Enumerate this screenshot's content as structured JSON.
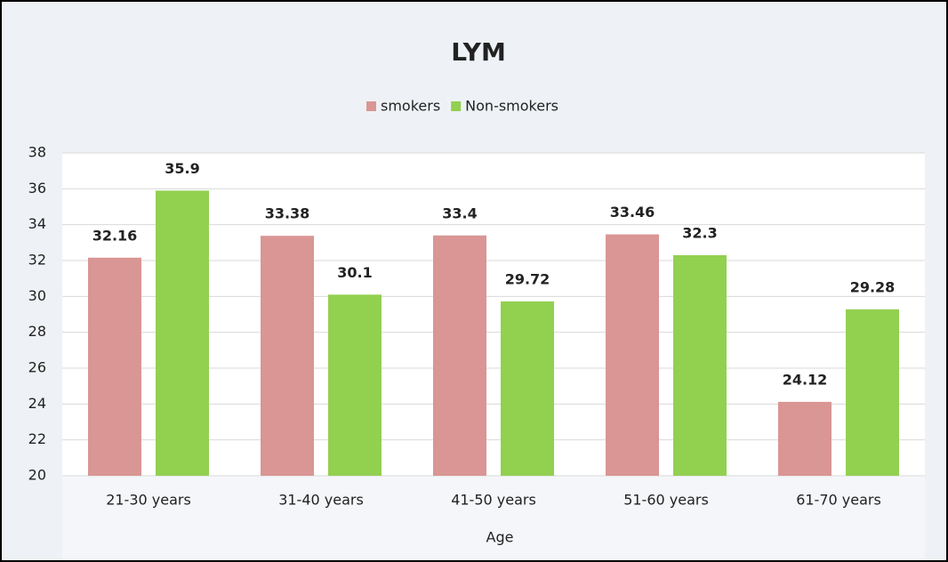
{
  "chart_data": {
    "type": "bar",
    "title": "LYM",
    "x_label": "Age",
    "categories": [
      "21-30 years",
      "31-40 years",
      "41-50 years",
      "51-60 years",
      "61-70 years"
    ],
    "series": [
      {
        "name": "smokers",
        "color": "#d99694",
        "values": [
          32.16,
          33.38,
          33.4,
          33.46,
          24.12
        ]
      },
      {
        "name": "Non-smokers",
        "color": "#92d050",
        "values": [
          35.9,
          30.1,
          29.72,
          32.3,
          29.28
        ]
      }
    ],
    "ylim": [
      20,
      38
    ],
    "yticks": [
      20,
      22,
      24,
      26,
      28,
      30,
      32,
      34,
      36,
      38
    ],
    "grid": true,
    "legend": "top"
  }
}
